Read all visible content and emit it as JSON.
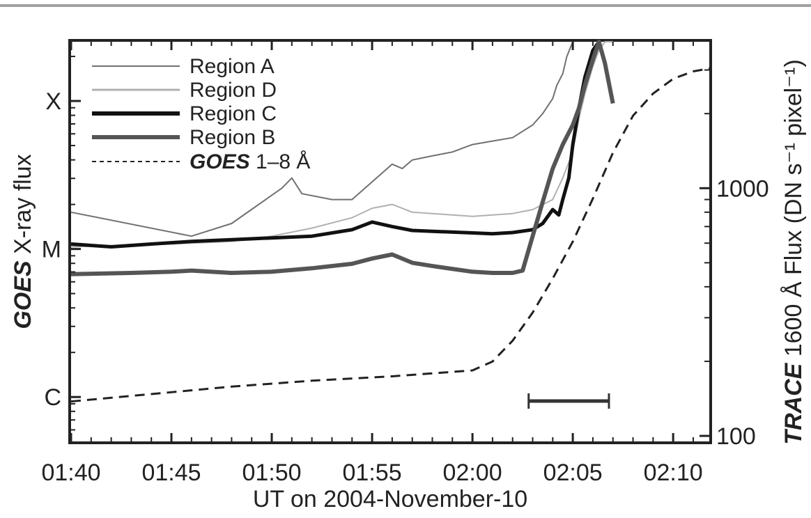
{
  "chart_data": {
    "type": "line",
    "xlabel": "UT on 2004-November-10",
    "ylabel_left": {
      "italic": "GOES",
      "rest": " X-ray flux"
    },
    "ylabel_right": {
      "italic": "TRACE",
      "rest": " 1600 Å Flux (DN s⁻¹ pixel⁻¹)"
    },
    "x_ticks": [
      "01:40",
      "01:45",
      "01:50",
      "01:55",
      "02:00",
      "02:05",
      "02:10"
    ],
    "x_tick_minutes": [
      0,
      5,
      10,
      15,
      20,
      25,
      30
    ],
    "xlim_minutes": [
      0,
      31.8
    ],
    "left_ticks": [
      "C",
      "M",
      "X"
    ],
    "left_tick_log10_flux": [
      -6,
      -5,
      -4
    ],
    "left_ylim_log10_flux": [
      -6.3,
      -3.6
    ],
    "right_ticks": [
      "100",
      "1000"
    ],
    "right_tick_values": [
      100,
      1000
    ],
    "right_ylim": [
      95,
      3900
    ],
    "grid": false,
    "legend_position": "top-left",
    "legend": [
      {
        "label": "Region A",
        "style": "thin-dark"
      },
      {
        "label": "Region D",
        "style": "thin-light"
      },
      {
        "label": "Region C",
        "style": "thick-black"
      },
      {
        "label": "Region B",
        "style": "thick-gray"
      },
      {
        "label_italic": "GOES",
        "label": " 1–8 Å",
        "style": "dashed"
      }
    ],
    "duration_bar_minutes": [
      22.8,
      26.8
    ],
    "series": [
      {
        "name": "Region A",
        "axis": "right",
        "color": "#707070",
        "width": 2,
        "x": [
          0,
          6,
          8,
          10.5,
          11,
          11.5,
          13,
          14,
          16,
          16.5,
          17,
          18,
          19,
          20,
          21,
          22,
          23,
          23.5,
          24,
          24.2,
          24.5,
          24.7,
          25
        ],
        "y": [
          800,
          640,
          720,
          1000,
          1100,
          950,
          900,
          900,
          1250,
          1200,
          1300,
          1350,
          1400,
          1500,
          1550,
          1600,
          1800,
          2000,
          2300,
          2600,
          2900,
          3400,
          3900
        ]
      },
      {
        "name": "Region D",
        "axis": "right",
        "color": "#b0b0b0",
        "width": 2,
        "x": [
          0,
          5,
          8,
          10,
          12,
          14,
          15,
          16,
          17,
          18,
          20,
          22,
          23,
          24,
          24.5,
          25,
          25.3,
          25.6,
          26,
          26.3,
          26.6,
          27
        ],
        "y": [
          580,
          595,
          610,
          640,
          690,
          760,
          830,
          860,
          800,
          790,
          770,
          790,
          820,
          900,
          1100,
          1400,
          1900,
          2400,
          3100,
          3600,
          3900,
          3900
        ]
      },
      {
        "name": "Region C",
        "axis": "right",
        "color": "#111111",
        "width": 5,
        "x": [
          0,
          2,
          4,
          6,
          8,
          10,
          12,
          14,
          15,
          16,
          17,
          18,
          20,
          21,
          22,
          23,
          23.5,
          24,
          24.3,
          24.5,
          24.8,
          25,
          25.3,
          25.6,
          26,
          26.3
        ],
        "y": [
          595,
          580,
          595,
          610,
          620,
          630,
          640,
          680,
          730,
          700,
          675,
          670,
          660,
          655,
          662,
          680,
          720,
          820,
          780,
          900,
          1100,
          1500,
          2100,
          2800,
          3600,
          3900
        ]
      },
      {
        "name": "Region B",
        "axis": "right",
        "color": "#555555",
        "width": 6,
        "x": [
          0,
          3,
          5,
          6,
          8,
          10,
          12,
          14,
          15,
          16,
          17,
          18,
          20,
          21,
          22,
          22.5,
          23,
          23.5,
          24,
          24.5,
          25,
          25.3,
          25.6,
          26,
          26.3,
          26.6,
          27
        ],
        "y": [
          450,
          455,
          460,
          465,
          455,
          460,
          475,
          495,
          520,
          540,
          500,
          485,
          460,
          455,
          455,
          465,
          640,
          880,
          1200,
          1500,
          1800,
          2100,
          2600,
          3300,
          3900,
          3200,
          2200
        ]
      },
      {
        "name": "GOES 1-8 Å",
        "axis": "left",
        "color": "#222222",
        "width": 3,
        "dash": "14,9",
        "x": [
          0,
          4,
          8,
          12,
          16,
          20,
          21,
          22,
          23,
          24,
          25,
          26,
          27,
          28,
          29,
          30,
          31,
          31.8
        ],
        "y": [
          -6.03,
          -5.98,
          -5.93,
          -5.89,
          -5.86,
          -5.82,
          -5.76,
          -5.62,
          -5.43,
          -5.2,
          -4.95,
          -4.66,
          -4.35,
          -4.1,
          -3.95,
          -3.85,
          -3.8,
          -3.78
        ]
      }
    ]
  }
}
